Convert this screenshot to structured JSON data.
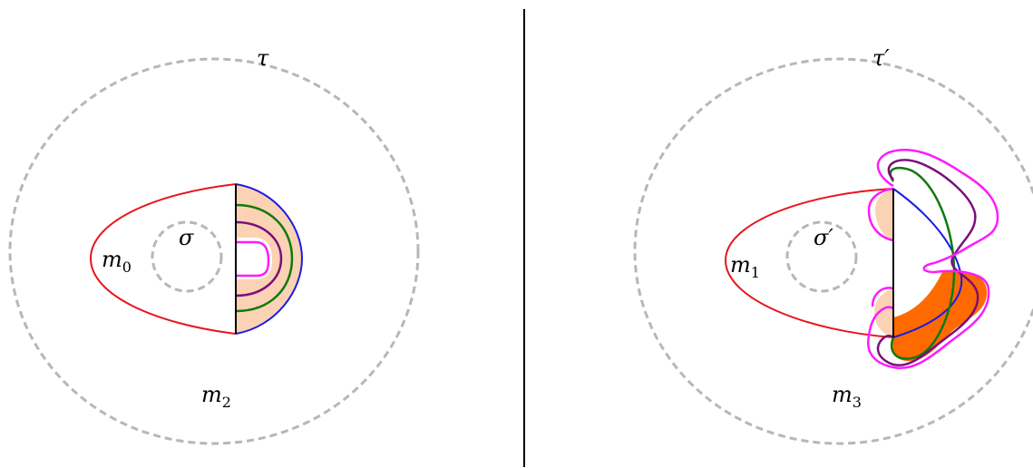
{
  "colors": {
    "dashed_circle": "#b7b7b7",
    "red_curve": "#e8141b",
    "blue_curve": "#1c1ce0",
    "green_curve": "#0c7a0c",
    "purple_curve": "#7a0f7a",
    "magenta_curve": "#ff1aff",
    "light_fill": "#fcd2b4",
    "dark_fill": "#ff6a00"
  },
  "left_panel": {
    "outer_label": "τ",
    "inner_label": "σ",
    "region_inner_letter": "m",
    "region_inner_sub": "0",
    "region_outer_letter": "m",
    "region_outer_sub": "2"
  },
  "right_panel": {
    "outer_label": "τ′",
    "inner_label": "σ′",
    "region_inner_letter": "m",
    "region_inner_sub": "1",
    "region_outer_letter": "m",
    "region_outer_sub": "3"
  }
}
